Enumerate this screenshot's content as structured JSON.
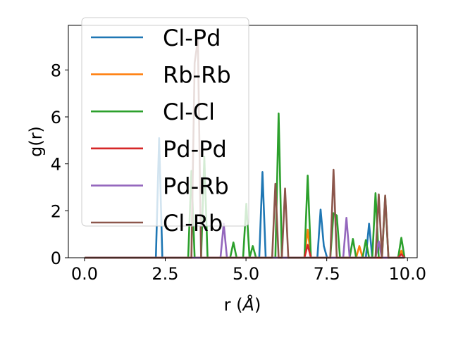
{
  "chart_data": {
    "type": "line",
    "xlabel_main": "r (",
    "xlabel_unit": "Å",
    "xlabel_close": ")",
    "ylabel": "g(r)",
    "xlim": [
      -0.5,
      10.3
    ],
    "ylim": [
      0,
      9.9
    ],
    "xticks": [
      "0.0",
      "2.5",
      "5.0",
      "7.5",
      "10.0"
    ],
    "xtick_values": [
      0,
      2.5,
      5,
      7.5,
      10
    ],
    "yticks": [
      "0",
      "2",
      "4",
      "6",
      "8"
    ],
    "ytick_values": [
      0,
      2,
      4,
      6,
      8
    ],
    "grid": false,
    "legend_position": "upper-left",
    "series": [
      {
        "name": "Cl-Pd",
        "color": "#1f77b4",
        "peaks": [
          [
            2.3,
            5.1
          ],
          [
            5.5,
            3.65
          ],
          [
            7.3,
            2.05
          ],
          [
            7.4,
            0.5
          ],
          [
            8.75,
            1.45
          ]
        ]
      },
      {
        "name": "Rb-Rb",
        "color": "#ff7f0e",
        "peaks": [
          [
            6.9,
            1.2
          ],
          [
            8.5,
            0.5
          ],
          [
            9.85,
            0.3
          ]
        ]
      },
      {
        "name": "Cl-Cl",
        "color": "#2ca02c",
        "peaks": [
          [
            3.3,
            3.7
          ],
          [
            3.65,
            4.3
          ],
          [
            4.6,
            0.65
          ],
          [
            4.95,
            2.3
          ],
          [
            5.15,
            0.5
          ],
          [
            6.0,
            6.15
          ],
          [
            6.9,
            3.5
          ],
          [
            7.7,
            1.9
          ],
          [
            7.85,
            1.8
          ],
          [
            8.3,
            0.8
          ],
          [
            8.65,
            0.75
          ],
          [
            9.0,
            2.75
          ],
          [
            9.3,
            2.6
          ],
          [
            9.85,
            0.85
          ]
        ]
      },
      {
        "name": "Pd-Pd",
        "color": "#d62728",
        "peaks": [
          [
            6.9,
            0.55
          ],
          [
            9.85,
            0.15
          ]
        ]
      },
      {
        "name": "Pd-Rb",
        "color": "#9467bd",
        "peaks": [
          [
            4.25,
            1.45
          ],
          [
            8.1,
            1.7
          ],
          [
            9.05,
            0.7
          ]
        ]
      },
      {
        "name": "Cl-Rb",
        "color": "#8c564b",
        "peaks": [
          [
            3.35,
            8.3
          ],
          [
            3.45,
            9.3
          ],
          [
            5.9,
            3.15
          ],
          [
            6.15,
            2.95
          ],
          [
            7.7,
            3.75
          ],
          [
            9.1,
            2.7
          ],
          [
            9.25,
            2.65
          ]
        ]
      }
    ]
  }
}
